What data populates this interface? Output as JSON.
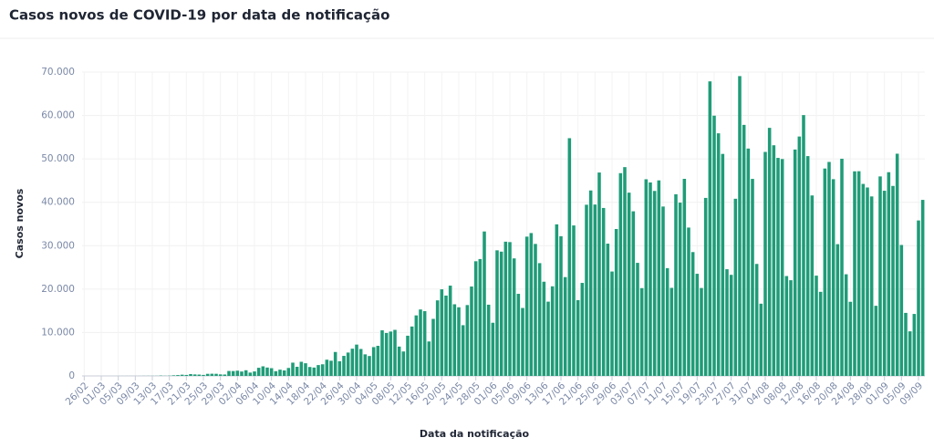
{
  "chart_data": {
    "type": "bar",
    "title": "Casos novos de COVID-19 por data de notificação",
    "x_label": "Data da notificação",
    "y_label": "Casos novos",
    "color": "#1f9c77",
    "grid": true,
    "ylim": [
      0,
      70000
    ],
    "yticks": [
      0,
      {
        "value": 10000,
        "label": "10.000"
      },
      {
        "value": 20000,
        "label": "20.000"
      },
      {
        "value": 30000,
        "label": "30.000"
      },
      {
        "value": 40000,
        "label": "40.000"
      },
      {
        "value": 50000,
        "label": "50.000"
      },
      {
        "value": 60000,
        "label": "60.000"
      },
      {
        "value": 70000,
        "label": "70.000"
      }
    ],
    "categories": [
      "26/02",
      null,
      null,
      null,
      "01/03",
      null,
      null,
      null,
      "05/03",
      null,
      null,
      null,
      "09/03",
      null,
      null,
      null,
      "13/03",
      null,
      null,
      null,
      "17/03",
      null,
      null,
      null,
      "21/03",
      null,
      null,
      null,
      "25/03",
      null,
      null,
      null,
      "29/03",
      null,
      null,
      null,
      "02/04",
      null,
      null,
      null,
      "06/04",
      null,
      null,
      null,
      "10/04",
      null,
      null,
      null,
      "14/04",
      null,
      null,
      null,
      "18/04",
      null,
      null,
      null,
      "22/04",
      null,
      null,
      null,
      "26/04",
      null,
      null,
      null,
      "30/04",
      null,
      null,
      null,
      "04/05",
      null,
      null,
      null,
      "08/05",
      null,
      null,
      null,
      "12/05",
      null,
      null,
      null,
      "16/05",
      null,
      null,
      null,
      "20/05",
      null,
      null,
      null,
      "24/05",
      null,
      null,
      null,
      "28/05",
      null,
      null,
      null,
      "01/06",
      null,
      null,
      null,
      "05/06",
      null,
      null,
      null,
      "09/06",
      null,
      null,
      null,
      "13/06",
      null,
      null,
      null,
      "17/06",
      null,
      null,
      null,
      "21/06",
      null,
      null,
      null,
      "25/06",
      null,
      null,
      null,
      "29/06",
      null,
      null,
      null,
      "03/07",
      null,
      null,
      null,
      "07/07",
      null,
      null,
      null,
      "11/07",
      null,
      null,
      null,
      "15/07",
      null,
      null,
      null,
      "19/07",
      null,
      null,
      null,
      "23/07",
      null,
      null,
      null,
      "27/07",
      null,
      null,
      null,
      "31/07",
      null,
      null,
      null,
      "04/08",
      null,
      null,
      null,
      "08/08",
      null,
      null,
      null,
      "12/08",
      null,
      null,
      null,
      "16/08",
      null,
      null,
      null,
      "20/08",
      null,
      null,
      null,
      "24/08",
      null,
      null,
      null,
      "28/08",
      null,
      null,
      null,
      "01/09",
      null,
      null,
      null,
      "05/09",
      null,
      null,
      null,
      "09/09",
      null
    ],
    "values": [
      1,
      0,
      0,
      1,
      0,
      1,
      0,
      1,
      4,
      5,
      6,
      6,
      6,
      6,
      18,
      25,
      21,
      23,
      79,
      34,
      57,
      137,
      193,
      283,
      224,
      418,
      345,
      310,
      232,
      482,
      502,
      487,
      352,
      323,
      1138,
      1119,
      1208,
      1012,
      1304,
      770,
      1031,
      1873,
      2210,
      1930,
      1781,
      1089,
      1442,
      1261,
      1832,
      3058,
      2105,
      3257,
      2917,
      2055,
      1927,
      2498,
      2678,
      3735,
      3503,
      5514,
      3379,
      4613,
      5385,
      6276,
      7218,
      6209,
      4970,
      4588,
      6633,
      6935,
      10503,
      9888,
      10222,
      10611,
      6760,
      5632,
      9258,
      11385,
      13944,
      15305,
      14919,
      7938,
      13140,
      17408,
      19951,
      18508,
      20803,
      16508,
      15813,
      11687,
      16324,
      20599,
      26417,
      26928,
      33274,
      16409,
      12247,
      28936,
      28633,
      30925,
      30830,
      27075,
      18912,
      15654,
      32091,
      32913,
      30412,
      25982,
      21704,
      17110,
      20647,
      34918,
      32188,
      22765,
      54771,
      34666,
      17459,
      21432,
      39436,
      42725,
      39483,
      46860,
      38693,
      30476,
      24052,
      33846,
      46712,
      48105,
      42223,
      37923,
      26051,
      20229,
      45305,
      44571,
      42619,
      45048,
      39023,
      24831,
      20286,
      41857,
      39924,
      45403,
      34177,
      28532,
      23529,
      20257,
      41008,
      67860,
      59961,
      55891,
      51147,
      24578,
      23284,
      40816,
      69074,
      57837,
      52383,
      45392,
      25800,
      16641,
      51603,
      57152,
      53139,
      50230,
      49970,
      23010,
      22048,
      52160,
      55155,
      60091,
      50644,
      41576,
      23101,
      19373,
      47784,
      49298,
      45323,
      30355,
      50032,
      23421,
      17078,
      47134,
      47161,
      44235,
      43412,
      41350,
      16158,
      45961,
      42659,
      46934,
      43773,
      51194,
      30168,
      14521,
      10273,
      14279,
      35816,
      40557
    ]
  }
}
